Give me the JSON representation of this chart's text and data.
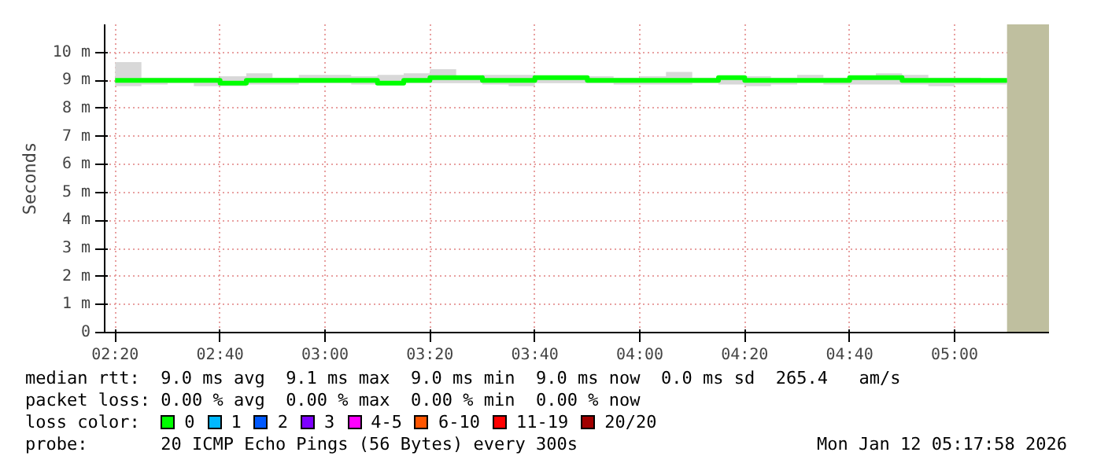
{
  "chart_data": {
    "type": "step",
    "ylabel": "Seconds",
    "x": [
      2.3333,
      2.4167,
      2.5,
      2.5833,
      2.6667,
      2.75,
      2.8333,
      2.9167,
      3.0,
      3.0833,
      3.1667,
      3.25,
      3.3333,
      3.4167,
      3.5,
      3.5833,
      3.6667,
      3.75,
      3.8333,
      3.9167,
      4.0,
      4.0833,
      4.1667,
      4.25,
      4.3333,
      4.4167,
      4.5,
      4.5833,
      4.6667,
      4.75,
      4.8333,
      4.9167,
      5.0,
      5.0833,
      5.1667
    ],
    "series": [
      {
        "name": "0",
        "color": "#00ff00",
        "values": [
          9.0,
          9.0,
          9.0,
          9.0,
          9.0,
          8.9,
          9.0,
          9.0,
          9.0,
          9.0,
          9.0,
          8.9,
          9.0,
          9.1,
          9.1,
          9.0,
          9.0,
          9.1,
          9.1,
          9.0,
          9.0,
          9.0,
          9.0,
          9.0,
          9.1,
          9.0,
          9.0,
          9.0,
          9.0,
          9.1,
          9.1,
          9.0,
          9.0,
          9.0,
          9.0
        ],
        "lower": [
          8.85,
          8.8,
          8.85,
          8.9,
          8.8,
          8.8,
          8.85,
          8.85,
          8.9,
          8.9,
          8.85,
          8.85,
          8.9,
          8.9,
          8.9,
          8.85,
          8.8,
          8.9,
          8.9,
          8.9,
          8.85,
          8.85,
          8.85,
          8.9,
          8.85,
          8.8,
          8.85,
          8.9,
          8.85,
          8.85,
          8.85,
          8.85,
          8.8,
          8.85,
          8.85
        ],
        "upper": [
          9.35,
          9.65,
          9.1,
          9.1,
          9.1,
          9.15,
          9.25,
          9.1,
          9.2,
          9.2,
          9.15,
          9.2,
          9.25,
          9.4,
          9.15,
          9.2,
          9.2,
          9.1,
          9.1,
          9.15,
          9.1,
          9.15,
          9.3,
          9.1,
          9.1,
          9.15,
          9.1,
          9.2,
          9.1,
          9.1,
          9.25,
          9.2,
          9.1,
          9.1,
          9.05
        ]
      },
      {
        "name": "1",
        "color": "#00b8ff",
        "values": [
          null,
          null,
          null,
          null,
          null,
          null,
          null,
          null,
          null,
          null,
          null,
          null,
          null,
          null,
          null,
          null,
          null,
          null,
          null,
          null,
          null,
          null,
          null,
          null,
          null,
          null,
          null,
          null,
          null,
          null,
          null,
          null,
          null,
          null,
          null
        ]
      },
      {
        "name": "2",
        "color": "#0059ff",
        "values": [
          null,
          null,
          null,
          null,
          null,
          null,
          null,
          null,
          null,
          null,
          null,
          null,
          null,
          null,
          null,
          null,
          null,
          null,
          null,
          null,
          null,
          null,
          null,
          null,
          null,
          null,
          null,
          null,
          null,
          null,
          null,
          null,
          null,
          null,
          null
        ]
      },
      {
        "name": "3",
        "color": "#7e00ff",
        "values": [
          null,
          null,
          null,
          null,
          null,
          null,
          null,
          null,
          null,
          null,
          null,
          null,
          null,
          null,
          null,
          null,
          null,
          null,
          null,
          null,
          null,
          null,
          null,
          null,
          null,
          null,
          null,
          null,
          null,
          null,
          null,
          null,
          null,
          null,
          null
        ]
      },
      {
        "name": "4-5",
        "color": "#ff00ff",
        "values": [
          null,
          null,
          null,
          null,
          null,
          null,
          null,
          null,
          null,
          null,
          null,
          null,
          null,
          null,
          null,
          null,
          null,
          null,
          null,
          null,
          null,
          null,
          null,
          null,
          null,
          null,
          null,
          null,
          null,
          null,
          null,
          null,
          null,
          null,
          null
        ]
      },
      {
        "name": "6-10",
        "color": "#ff5500",
        "values": [
          null,
          null,
          null,
          null,
          null,
          null,
          null,
          null,
          null,
          null,
          null,
          null,
          null,
          null,
          null,
          null,
          null,
          null,
          null,
          null,
          null,
          null,
          null,
          null,
          null,
          null,
          null,
          null,
          null,
          null,
          null,
          null,
          null,
          null,
          null
        ]
      },
      {
        "name": "11-19",
        "color": "#ff0000",
        "values": [
          null,
          null,
          null,
          null,
          null,
          null,
          null,
          null,
          null,
          null,
          null,
          null,
          null,
          null,
          null,
          null,
          null,
          null,
          null,
          null,
          null,
          null,
          null,
          null,
          null,
          null,
          null,
          null,
          null,
          null,
          null,
          null,
          null,
          null,
          null
        ]
      },
      {
        "name": "20/20",
        "color": "#a10000",
        "values": [
          null,
          null,
          null,
          null,
          null,
          null,
          null,
          null,
          null,
          null,
          null,
          null,
          null,
          null,
          null,
          null,
          null,
          null,
          null,
          null,
          null,
          null,
          null,
          null,
          null,
          null,
          null,
          null,
          null,
          null,
          null,
          null,
          null,
          null,
          null
        ]
      }
    ],
    "legend_title": "loss color:",
    "legend": "bottom",
    "xlim": [
      2.3,
      5.3
    ],
    "xticks": [
      {
        "value": 2.3333,
        "label": "02:20"
      },
      {
        "value": 2.6667,
        "label": "02:40"
      },
      {
        "value": 3.0,
        "label": "03:00"
      },
      {
        "value": 3.3333,
        "label": "03:20"
      },
      {
        "value": 3.6667,
        "label": "03:40"
      },
      {
        "value": 4.0,
        "label": "04:00"
      },
      {
        "value": 4.3333,
        "label": "04:20"
      },
      {
        "value": 4.6667,
        "label": "04:40"
      },
      {
        "value": 5.0,
        "label": "05:00"
      }
    ],
    "ylim": [
      0,
      11
    ],
    "yticks": [
      0,
      {
        "value": 1,
        "label": "1 m"
      },
      {
        "value": 2,
        "label": "2 m"
      },
      {
        "value": 3,
        "label": "3 m"
      },
      {
        "value": 4,
        "label": "4 m"
      },
      {
        "value": 5,
        "label": "5 m"
      },
      {
        "value": 6,
        "label": "6 m"
      },
      {
        "value": 7,
        "label": "7 m"
      },
      {
        "value": 8,
        "label": "8 m"
      },
      {
        "value": 9,
        "label": "9 m"
      },
      {
        "value": 10,
        "label": "10 m"
      }
    ],
    "bands": [
      {
        "axis": "x",
        "from": 5.1667,
        "to": 5.3,
        "color": "#bfbf9f"
      }
    ],
    "grid": true,
    "annotations": [
      "median rtt:  9.0 ms avg  9.1 ms max  9.0 ms min  9.0 ms now  0.0 ms sd  265.4   am/s",
      "packet loss: 0.00 % avg  0.00 % max  0.00 % min  0.00 % now",
      "probe:       20 ICMP Echo Pings (56 Bytes) every 300s",
      "Mon Jan 12 05:17:58 2026"
    ]
  }
}
